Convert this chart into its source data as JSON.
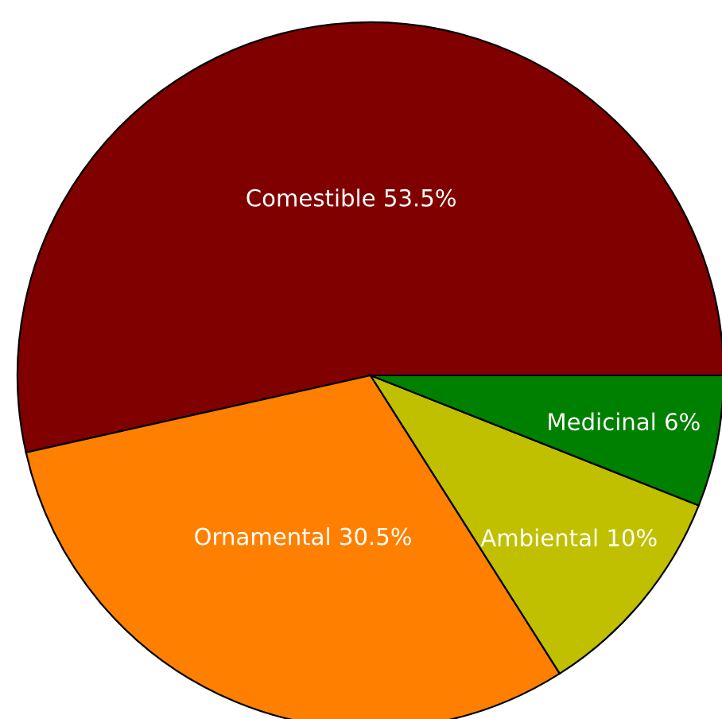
{
  "chart_data": {
    "type": "pie",
    "categories": [
      "Comestible",
      "Ornamental",
      "Ambiental",
      "Medicinal"
    ],
    "values": [
      53.5,
      30.5,
      10,
      6
    ],
    "value_labels": [
      "53.5%",
      "30.5%",
      "10%",
      "6%"
    ],
    "colors": [
      "#800000",
      "#ff8000",
      "#c0c000",
      "#008000"
    ]
  }
}
